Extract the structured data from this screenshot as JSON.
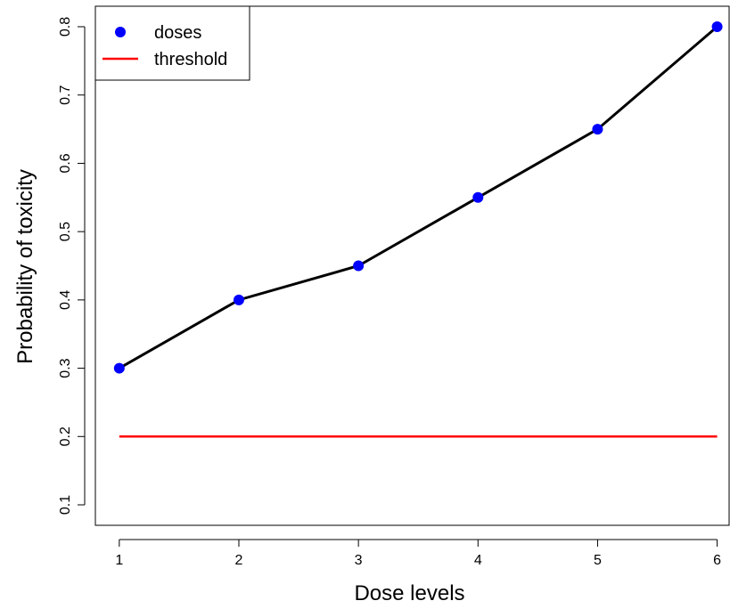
{
  "chart_data": {
    "type": "line",
    "xlabel": "Dose levels",
    "ylabel": "Probability of toxicity",
    "x": [
      1,
      2,
      3,
      4,
      5,
      6
    ],
    "xlim": [
      0.8,
      6.1
    ],
    "ylim": [
      0.07,
      0.83
    ],
    "xticks": [
      1,
      2,
      3,
      4,
      5,
      6
    ],
    "yticks": [
      0.1,
      0.2,
      0.3,
      0.4,
      0.5,
      0.6,
      0.7,
      0.8
    ],
    "series": [
      {
        "name": "doses",
        "values": [
          0.3,
          0.4,
          0.45,
          0.55,
          0.65,
          0.8
        ],
        "line_color": "#000000",
        "marker_color": "#0000ff"
      }
    ],
    "threshold": {
      "name": "threshold",
      "value": 0.2,
      "x_range": [
        1,
        6
      ],
      "color": "#ff0000"
    },
    "legend": {
      "position": "top-left",
      "entries": [
        {
          "label": "doses",
          "kind": "point",
          "color": "#0000ff"
        },
        {
          "label": "threshold",
          "kind": "line",
          "color": "#ff0000"
        }
      ]
    },
    "grid": false
  }
}
